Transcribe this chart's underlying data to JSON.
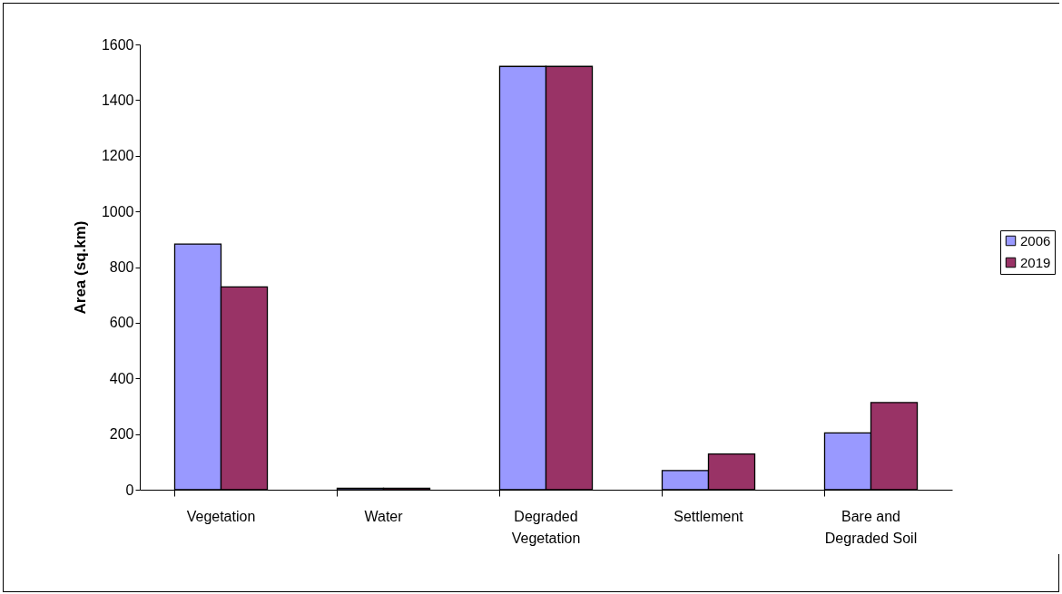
{
  "chart_data": {
    "type": "bar",
    "ylabel": "Area (sq.km)",
    "categories": [
      "Vegetation",
      "Water",
      "Degraded Vegetation",
      "Settlement",
      "Bare and Degraded Soil"
    ],
    "series": [
      {
        "name": "2006",
        "color": "#9999ff",
        "values": [
          883,
          5,
          1521,
          69,
          204
        ]
      },
      {
        "name": "2019",
        "color": "#993366",
        "values": [
          729,
          5,
          1521,
          128,
          313
        ]
      }
    ],
    "ylim": [
      0,
      1600
    ],
    "yticks": [
      0,
      200,
      400,
      600,
      800,
      1000,
      1200,
      1400,
      1600
    ],
    "grid": false,
    "legend": "right"
  }
}
